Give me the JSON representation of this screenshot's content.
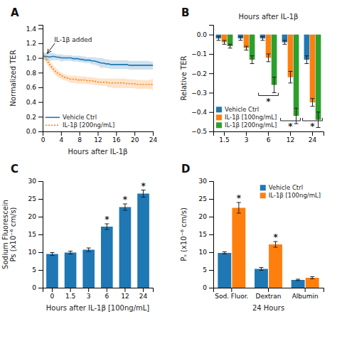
{
  "chart_data": [
    {
      "type": "line",
      "panel_label": "A",
      "xlabel": "Hours after IL-1β",
      "ylabel": "Normalized TER",
      "x": [
        0,
        0.5106,
        1.0213,
        1.5319,
        2.0426,
        2.5532,
        3.0638,
        3.5745,
        4.0851,
        4.5957,
        5.1064,
        5.617,
        6.1277,
        6.6383,
        7.1489,
        7.6596,
        8.1702,
        8.6809,
        9.1915,
        9.7021,
        10.2128,
        10.7234,
        11.234,
        11.7447,
        12.2553,
        12.766,
        13.2766,
        13.7872,
        14.2979,
        14.8085,
        15.3191,
        15.8298,
        16.3404,
        16.8511,
        17.3617,
        17.8723,
        18.383,
        18.8936,
        19.4043,
        19.9149,
        20.4255,
        20.9362,
        21.4468,
        21.9574,
        22.4681,
        22.9787,
        23.4894,
        24
      ],
      "xlim": [
        0,
        24
      ],
      "ylim": [
        0.0,
        1.45
      ],
      "xticks": [
        0,
        4,
        8,
        12,
        16,
        20,
        24
      ],
      "yticks": [
        {
          "value": 0.0,
          "label": "0.0"
        },
        0.2,
        0.4,
        0.6,
        0.8,
        {
          "value": 1.0,
          "label": "1.0"
        },
        1.2,
        1.4
      ],
      "series": [
        {
          "name": "Vehicle Ctrl",
          "line_style": "solid",
          "values": [
            1.03,
            1.02,
            1.02,
            1.01,
            1.02,
            1.02,
            1.01,
            1.01,
            1.0,
            1.0,
            1.0,
            1.0,
            1.0,
            0.99,
            0.99,
            0.99,
            0.98,
            0.98,
            0.97,
            0.97,
            0.97,
            0.96,
            0.96,
            0.95,
            0.94,
            0.93,
            0.93,
            0.92,
            0.92,
            0.91,
            0.91,
            0.91,
            0.91,
            0.91,
            0.91,
            0.91,
            0.91,
            0.9,
            0.9,
            0.9,
            0.9,
            0.9,
            0.9,
            0.9,
            0.9,
            0.9,
            0.9,
            0.9
          ],
          "upper": [
            1.08,
            1.07,
            1.07,
            1.06,
            1.07,
            1.06,
            1.05,
            1.05,
            1.05,
            1.04,
            1.04,
            1.04,
            1.04,
            1.03,
            1.03,
            1.03,
            1.03,
            1.02,
            1.02,
            1.01,
            1.01,
            1.01,
            1.01,
            1.0,
            1.0,
            1.0,
            0.99,
            0.98,
            0.98,
            0.97,
            0.97,
            0.97,
            0.97,
            0.97,
            0.97,
            0.97,
            0.97,
            0.96,
            0.96,
            0.96,
            0.96,
            0.96,
            0.96,
            0.96,
            0.96,
            0.96,
            0.95,
            0.95
          ],
          "lower": [
            0.98,
            0.97,
            0.97,
            0.96,
            0.97,
            0.97,
            0.97,
            0.97,
            0.95,
            0.96,
            0.96,
            0.96,
            0.96,
            0.95,
            0.95,
            0.95,
            0.94,
            0.94,
            0.93,
            0.93,
            0.93,
            0.91,
            0.91,
            0.9,
            0.89,
            0.86,
            0.87,
            0.86,
            0.86,
            0.85,
            0.85,
            0.85,
            0.85,
            0.85,
            0.85,
            0.85,
            0.85,
            0.84,
            0.84,
            0.84,
            0.84,
            0.84,
            0.84,
            0.84,
            0.84,
            0.84,
            0.84,
            0.84
          ]
        },
        {
          "name": "IL-1β [200ng/mL]",
          "line_style": "dotted",
          "values": [
            1.04,
            1.01,
            0.96,
            0.91,
            0.87,
            0.83,
            0.8,
            0.78,
            0.76,
            0.74,
            0.73,
            0.72,
            0.71,
            0.71,
            0.71,
            0.7,
            0.7,
            0.7,
            0.7,
            0.69,
            0.69,
            0.69,
            0.68,
            0.68,
            0.67,
            0.67,
            0.67,
            0.67,
            0.66,
            0.66,
            0.66,
            0.66,
            0.66,
            0.66,
            0.66,
            0.66,
            0.65,
            0.65,
            0.65,
            0.65,
            0.64,
            0.64,
            0.64,
            0.64,
            0.64,
            0.64,
            0.64,
            0.64
          ],
          "upper": [
            1.09,
            1.06,
            1.01,
            0.96,
            0.92,
            0.88,
            0.85,
            0.82,
            0.8,
            0.78,
            0.77,
            0.76,
            0.76,
            0.76,
            0.76,
            0.75,
            0.75,
            0.75,
            0.75,
            0.74,
            0.74,
            0.74,
            0.73,
            0.73,
            0.72,
            0.72,
            0.72,
            0.72,
            0.72,
            0.72,
            0.72,
            0.72,
            0.72,
            0.72,
            0.72,
            0.72,
            0.71,
            0.71,
            0.71,
            0.71,
            0.7,
            0.7,
            0.7,
            0.7,
            0.7,
            0.7,
            0.7,
            0.72
          ],
          "lower": [
            0.99,
            0.96,
            0.91,
            0.86,
            0.82,
            0.78,
            0.75,
            0.73,
            0.71,
            0.7,
            0.69,
            0.68,
            0.66,
            0.66,
            0.66,
            0.65,
            0.65,
            0.65,
            0.65,
            0.64,
            0.64,
            0.64,
            0.63,
            0.63,
            0.62,
            0.62,
            0.62,
            0.62,
            0.6,
            0.6,
            0.59,
            0.59,
            0.59,
            0.59,
            0.59,
            0.59,
            0.59,
            0.59,
            0.59,
            0.59,
            0.58,
            0.58,
            0.58,
            0.58,
            0.58,
            0.58,
            0.58,
            0.56
          ]
        }
      ],
      "annotations": [
        {
          "text": "IL-1β added",
          "x": 1.0,
          "y": 1.06,
          "text_x": 2.5,
          "text_y": 1.22
        }
      ],
      "legend": "lower left"
    },
    {
      "type": "bar",
      "panel_label": "B",
      "title": "Hours after IL-1β",
      "ylabel": "Relative TER",
      "categories": [
        "1.5",
        "3",
        "6",
        "12",
        "24"
      ],
      "ylim": [
        -0.5,
        0.05
      ],
      "yticks": [
        {
          "value": 0,
          "label": "0.0"
        },
        {
          "value": -0.1,
          "label": "−0.1"
        },
        {
          "value": -0.2,
          "label": "−0.2"
        },
        {
          "value": -0.3,
          "label": "−0.3"
        },
        {
          "value": -0.4,
          "label": "−0.4"
        },
        {
          "value": -0.5,
          "label": "−0.5"
        }
      ],
      "series": [
        {
          "name": "Vehicle Ctrl",
          "values": [
            -0.02,
            -0.02,
            -0.02,
            -0.04,
            -0.13
          ],
          "errors": [
            0.01,
            0.01,
            0.01,
            0.01,
            0.02
          ]
        },
        {
          "name": "IL-1β [100ng/mL]",
          "values": [
            -0.04,
            -0.07,
            -0.12,
            -0.22,
            -0.35
          ],
          "errors": [
            0.01,
            0.01,
            0.02,
            0.03,
            0.02
          ]
        },
        {
          "name": "IL-1β [200ng/mL]",
          "values": [
            -0.06,
            -0.13,
            -0.26,
            -0.42,
            -0.44
          ],
          "errors": [
            0.01,
            0.02,
            0.04,
            0.04,
            0.04
          ]
        }
      ],
      "brackets": [
        {
          "category": "6",
          "y": -0.315,
          "text": "*"
        },
        {
          "category": "12",
          "y": -0.445,
          "text": "*"
        },
        {
          "category": "24",
          "y": -0.445,
          "text": "*"
        }
      ],
      "legend": "lower left"
    },
    {
      "type": "bar",
      "panel_label": "C",
      "xlabel": "Hours after IL-1β [100ng/mL]",
      "ylabel": "Sodium Fluorescein\nPs (x10⁻⁶ cm/s)",
      "categories": [
        "0",
        "1.5",
        "3",
        "6",
        "12",
        "24"
      ],
      "values": [
        9.5,
        9.9,
        10.7,
        17.2,
        22.7,
        26.5
      ],
      "errors": [
        0.4,
        0.4,
        0.5,
        0.8,
        0.9,
        1.0
      ],
      "sig": [
        false,
        false,
        false,
        true,
        true,
        true
      ],
      "sig_text": "*",
      "ylim": [
        0,
        30
      ],
      "yticks": [
        0,
        5,
        10,
        15,
        20,
        25,
        30
      ]
    },
    {
      "type": "bar",
      "panel_label": "D",
      "xlabel": "24 Hours",
      "ylabel": "Pₛ (x10⁻⁶ cm/s)",
      "categories": [
        "Sod. Fluor.",
        "Dextran",
        "Albumin"
      ],
      "series": [
        {
          "name": "Vehicle Ctrl",
          "values": [
            9.8,
            5.3,
            2.2
          ],
          "errors": [
            0.3,
            0.4,
            0.2
          ]
        },
        {
          "name": "IL-1β [100ng/mL]",
          "values": [
            22.5,
            12.2,
            2.8
          ],
          "errors": [
            1.5,
            0.8,
            0.3
          ],
          "sig": [
            true,
            true,
            false
          ]
        }
      ],
      "sig_text": "*",
      "ylim": [
        0,
        30
      ],
      "yticks": [
        0,
        5,
        10,
        15,
        20,
        25,
        30
      ],
      "legend": "upper right"
    }
  ]
}
